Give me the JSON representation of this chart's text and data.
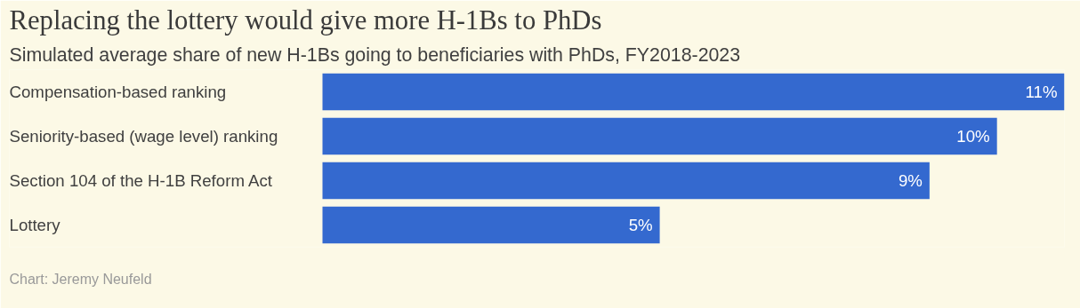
{
  "chart_data": {
    "type": "bar",
    "orientation": "horizontal",
    "title": "Replacing the lottery would give more H-1Bs to PhDs",
    "subtitle": "Simulated average share of new H-1Bs going to beneficiaries with PhDs, FY2018-2023",
    "categories": [
      "Compensation-based ranking",
      "Seniority-based (wage level) ranking",
      "Section 104 of the H-1B Reform Act",
      "Lottery"
    ],
    "values": [
      11,
      10,
      9,
      5
    ],
    "value_labels": [
      "11%",
      "10%",
      "9%",
      "5%"
    ],
    "color": "#3469cf",
    "annotations": [
      "Chart: Jeremy Neufeld"
    ]
  }
}
